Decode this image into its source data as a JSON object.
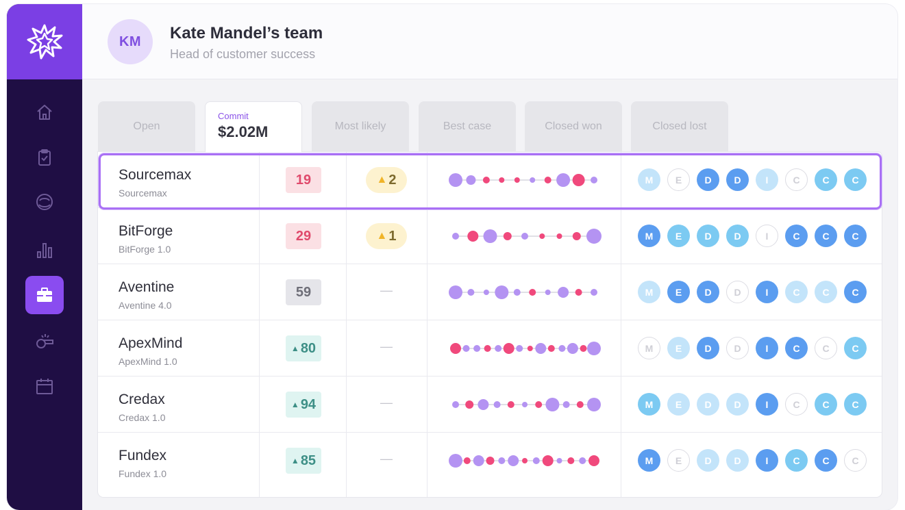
{
  "header": {
    "avatar_initials": "KM",
    "title": "Kate Mandel’s team",
    "subtitle": "Head of customer success"
  },
  "sidebar": {
    "logo": "starburst-logo-icon",
    "items": [
      {
        "icon": "home-icon",
        "active": false
      },
      {
        "icon": "clipboard-check-icon",
        "active": false
      },
      {
        "icon": "chat-bubbles-icon",
        "active": false
      },
      {
        "icon": "bar-chart-icon",
        "active": false
      },
      {
        "icon": "briefcase-icon",
        "active": true
      },
      {
        "icon": "whistle-icon",
        "active": false
      },
      {
        "icon": "calendar-icon",
        "active": false
      }
    ]
  },
  "tabs": [
    {
      "label": "Open"
    },
    {
      "label": "Commit",
      "value": "$2.02M"
    },
    {
      "label": "Most likely"
    },
    {
      "label": "Best case"
    },
    {
      "label": "Closed won"
    },
    {
      "label": "Closed lost"
    }
  ],
  "colors": {
    "brand": "#7b3fe4",
    "sidebar_bg": "#1f0e44",
    "risk_bg": "#fbe0e4",
    "risk_text": "#e04a6c",
    "neutral_bg": "#e5e5ea",
    "neutral_text": "#6e6e78",
    "good_bg": "#dff4f1",
    "good_text": "#3d8f86",
    "dot_purple": "#b493f2",
    "dot_pink": "#f0497c",
    "chip_dark": "#5b9df0",
    "chip_mid": "#7ccaf2",
    "chip_light": "#c3e4fa"
  },
  "rows": [
    {
      "name": "Sourcemax",
      "sub": "Sourcemax",
      "score": "19",
      "score_type": "risk",
      "score_icon": "",
      "warn": "2",
      "dash": "",
      "dots": [
        [
          "p",
          10
        ],
        [
          "p",
          7
        ],
        [
          "k",
          5
        ],
        [
          "k",
          4
        ],
        [
          "k",
          4
        ],
        [
          "p",
          4
        ],
        [
          "k",
          5
        ],
        [
          "p",
          10
        ],
        [
          "k",
          9
        ],
        [
          "p",
          5
        ]
      ],
      "chips": [
        [
          "M",
          "light"
        ],
        [
          "E",
          "empty"
        ],
        [
          "D",
          "dark"
        ],
        [
          "D",
          "dark"
        ],
        [
          "I",
          "light"
        ],
        [
          "C",
          "empty"
        ],
        [
          "C",
          "mid"
        ],
        [
          "C",
          "mid"
        ]
      ]
    },
    {
      "name": "BitForge",
      "sub": "BitForge 1.0",
      "score": "29",
      "score_type": "risk",
      "score_icon": "",
      "warn": "1",
      "dash": "",
      "dots": [
        [
          "p",
          5
        ],
        [
          "k",
          8
        ],
        [
          "p",
          10
        ],
        [
          "k",
          6
        ],
        [
          "p",
          5
        ],
        [
          "k",
          4
        ],
        [
          "k",
          4
        ],
        [
          "k",
          6
        ],
        [
          "p",
          11
        ]
      ],
      "chips": [
        [
          "M",
          "dark"
        ],
        [
          "E",
          "mid"
        ],
        [
          "D",
          "mid"
        ],
        [
          "D",
          "mid"
        ],
        [
          "I",
          "empty"
        ],
        [
          "C",
          "dark"
        ],
        [
          "C",
          "dark"
        ],
        [
          "C",
          "dark"
        ]
      ]
    },
    {
      "name": "Aventine",
      "sub": "Aventine 4.0",
      "score": "59",
      "score_type": "neutral",
      "score_icon": "",
      "warn": "",
      "dash": "—",
      "dots": [
        [
          "p",
          10
        ],
        [
          "p",
          5
        ],
        [
          "p",
          4
        ],
        [
          "p",
          10
        ],
        [
          "p",
          5
        ],
        [
          "k",
          5
        ],
        [
          "p",
          4
        ],
        [
          "p",
          8
        ],
        [
          "k",
          5
        ],
        [
          "p",
          5
        ]
      ],
      "chips": [
        [
          "M",
          "light"
        ],
        [
          "E",
          "dark"
        ],
        [
          "D",
          "dark"
        ],
        [
          "D",
          "empty"
        ],
        [
          "I",
          "dark"
        ],
        [
          "C",
          "light"
        ],
        [
          "C",
          "light"
        ],
        [
          "C",
          "dark"
        ]
      ]
    },
    {
      "name": "ApexMind",
      "sub": "ApexMind 1.0",
      "score": "80",
      "score_type": "good",
      "score_icon": "▲",
      "warn": "",
      "dash": "—",
      "dots": [
        [
          "k",
          8
        ],
        [
          "p",
          5
        ],
        [
          "p",
          5
        ],
        [
          "k",
          5
        ],
        [
          "p",
          5
        ],
        [
          "k",
          8
        ],
        [
          "p",
          5
        ],
        [
          "k",
          4
        ],
        [
          "p",
          8
        ],
        [
          "k",
          5
        ],
        [
          "p",
          5
        ],
        [
          "p",
          8
        ],
        [
          "k",
          5
        ],
        [
          "p",
          10
        ]
      ],
      "chips": [
        [
          "M",
          "empty"
        ],
        [
          "E",
          "light"
        ],
        [
          "D",
          "dark"
        ],
        [
          "D",
          "empty"
        ],
        [
          "I",
          "dark"
        ],
        [
          "C",
          "dark"
        ],
        [
          "C",
          "empty"
        ],
        [
          "C",
          "mid"
        ]
      ]
    },
    {
      "name": "Credax",
      "sub": "Credax 1.0",
      "score": "94",
      "score_type": "good",
      "score_icon": "▲",
      "warn": "",
      "dash": "—",
      "dots": [
        [
          "p",
          5
        ],
        [
          "k",
          6
        ],
        [
          "p",
          8
        ],
        [
          "p",
          5
        ],
        [
          "k",
          5
        ],
        [
          "p",
          4
        ],
        [
          "k",
          5
        ],
        [
          "p",
          10
        ],
        [
          "p",
          5
        ],
        [
          "k",
          5
        ],
        [
          "p",
          10
        ]
      ],
      "chips": [
        [
          "M",
          "mid"
        ],
        [
          "E",
          "light"
        ],
        [
          "D",
          "light"
        ],
        [
          "D",
          "light"
        ],
        [
          "I",
          "dark"
        ],
        [
          "C",
          "empty"
        ],
        [
          "C",
          "mid"
        ],
        [
          "C",
          "mid"
        ]
      ]
    },
    {
      "name": "Fundex",
      "sub": "Fundex 1.0",
      "score": "85",
      "score_type": "good",
      "score_icon": "▲",
      "warn": "",
      "dash": "—",
      "dots": [
        [
          "p",
          10
        ],
        [
          "k",
          5
        ],
        [
          "p",
          8
        ],
        [
          "k",
          6
        ],
        [
          "p",
          5
        ],
        [
          "p",
          8
        ],
        [
          "k",
          4
        ],
        [
          "p",
          5
        ],
        [
          "k",
          8
        ],
        [
          "p",
          4
        ],
        [
          "k",
          5
        ],
        [
          "p",
          5
        ],
        [
          "k",
          8
        ]
      ],
      "chips": [
        [
          "M",
          "dark"
        ],
        [
          "E",
          "empty"
        ],
        [
          "D",
          "light"
        ],
        [
          "D",
          "light"
        ],
        [
          "I",
          "dark"
        ],
        [
          "C",
          "mid"
        ],
        [
          "C",
          "dark"
        ],
        [
          "C",
          "empty"
        ]
      ]
    }
  ]
}
